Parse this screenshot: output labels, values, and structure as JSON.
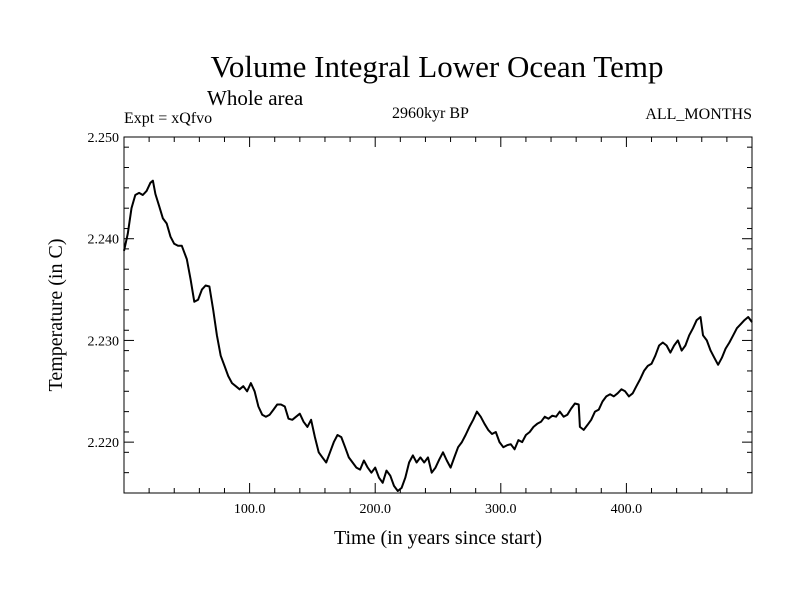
{
  "chart_data": {
    "type": "line",
    "title": "Volume Integral Lower Ocean Temp",
    "subtitle": "Whole area",
    "annotations": {
      "experiment": "Expt = xQfvo",
      "period": "2960kyr BP",
      "months": "ALL_MONTHS"
    },
    "xlabel": "Time (in years since start)",
    "ylabel": "Temperature (in C)",
    "xlim": [
      0,
      500
    ],
    "ylim": [
      2.215,
      2.25
    ],
    "x_ticks": [
      {
        "value": 100,
        "label": "100.0"
      },
      {
        "value": 200,
        "label": "200.0"
      },
      {
        "value": 300,
        "label": "300.0"
      },
      {
        "value": 400,
        "label": "400.0"
      }
    ],
    "y_ticks": [
      {
        "value": 2.22,
        "label": "2.220"
      },
      {
        "value": 2.23,
        "label": "2.230"
      },
      {
        "value": 2.24,
        "label": "2.240"
      },
      {
        "value": 2.25,
        "label": "2.250"
      }
    ],
    "series": [
      {
        "name": "Volume Integral Lower Ocean Temp",
        "color": "#000000",
        "points": [
          [
            0,
            2.2388
          ],
          [
            3,
            2.2405
          ],
          [
            6,
            2.243
          ],
          [
            9,
            2.2443
          ],
          [
            12,
            2.2445
          ],
          [
            15,
            2.2443
          ],
          [
            18,
            2.2447
          ],
          [
            21,
            2.2455
          ],
          [
            23,
            2.2457
          ],
          [
            25,
            2.2444
          ],
          [
            28,
            2.2432
          ],
          [
            31,
            2.242
          ],
          [
            34,
            2.2415
          ],
          [
            37,
            2.2402
          ],
          [
            40,
            2.2395
          ],
          [
            43,
            2.2393
          ],
          [
            46,
            2.2393
          ],
          [
            50,
            2.238
          ],
          [
            53,
            2.236
          ],
          [
            56,
            2.2338
          ],
          [
            59,
            2.234
          ],
          [
            62,
            2.235
          ],
          [
            65,
            2.2354
          ],
          [
            68,
            2.2353
          ],
          [
            71,
            2.233
          ],
          [
            74,
            2.2305
          ],
          [
            77,
            2.2285
          ],
          [
            80,
            2.2275
          ],
          [
            83,
            2.2265
          ],
          [
            86,
            2.2258
          ],
          [
            89,
            2.2255
          ],
          [
            92,
            2.2252
          ],
          [
            95,
            2.2255
          ],
          [
            98,
            2.225
          ],
          [
            101,
            2.2258
          ],
          [
            104,
            2.225
          ],
          [
            107,
            2.2235
          ],
          [
            110,
            2.2227
          ],
          [
            113,
            2.2225
          ],
          [
            116,
            2.2227
          ],
          [
            119,
            2.2232
          ],
          [
            122,
            2.2237
          ],
          [
            125,
            2.2237
          ],
          [
            128,
            2.2235
          ],
          [
            131,
            2.2223
          ],
          [
            134,
            2.2222
          ],
          [
            137,
            2.2225
          ],
          [
            140,
            2.2228
          ],
          [
            143,
            2.222
          ],
          [
            146,
            2.2215
          ],
          [
            149,
            2.2222
          ],
          [
            152,
            2.2205
          ],
          [
            155,
            2.219
          ],
          [
            158,
            2.2185
          ],
          [
            161,
            2.218
          ],
          [
            164,
            2.219
          ],
          [
            167,
            2.22
          ],
          [
            170,
            2.2207
          ],
          [
            173,
            2.2205
          ],
          [
            176,
            2.2195
          ],
          [
            179,
            2.2185
          ],
          [
            182,
            2.218
          ],
          [
            185,
            2.2175
          ],
          [
            188,
            2.2173
          ],
          [
            191,
            2.2182
          ],
          [
            194,
            2.2175
          ],
          [
            197,
            2.217
          ],
          [
            200,
            2.2175
          ],
          [
            203,
            2.2165
          ],
          [
            206,
            2.216
          ],
          [
            209,
            2.2172
          ],
          [
            212,
            2.2167
          ],
          [
            215,
            2.2157
          ],
          [
            218,
            2.2152
          ],
          [
            221,
            2.2155
          ],
          [
            224,
            2.2165
          ],
          [
            227,
            2.218
          ],
          [
            230,
            2.2187
          ],
          [
            233,
            2.218
          ],
          [
            236,
            2.2185
          ],
          [
            239,
            2.218
          ],
          [
            242,
            2.2185
          ],
          [
            245,
            2.217
          ],
          [
            248,
            2.2175
          ],
          [
            251,
            2.2183
          ],
          [
            254,
            2.219
          ],
          [
            257,
            2.2182
          ],
          [
            260,
            2.2175
          ],
          [
            263,
            2.2185
          ],
          [
            266,
            2.2195
          ],
          [
            269,
            2.22
          ],
          [
            272,
            2.2207
          ],
          [
            275,
            2.2215
          ],
          [
            278,
            2.2222
          ],
          [
            281,
            2.223
          ],
          [
            284,
            2.2225
          ],
          [
            287,
            2.2218
          ],
          [
            290,
            2.2212
          ],
          [
            293,
            2.2208
          ],
          [
            296,
            2.221
          ],
          [
            299,
            2.22
          ],
          [
            302,
            2.2195
          ],
          [
            305,
            2.2197
          ],
          [
            308,
            2.2198
          ],
          [
            311,
            2.2193
          ],
          [
            314,
            2.2202
          ],
          [
            317,
            2.22
          ],
          [
            320,
            2.2207
          ],
          [
            323,
            2.221
          ],
          [
            326,
            2.2215
          ],
          [
            329,
            2.2218
          ],
          [
            332,
            2.222
          ],
          [
            335,
            2.2225
          ],
          [
            338,
            2.2223
          ],
          [
            341,
            2.2226
          ],
          [
            344,
            2.2225
          ],
          [
            347,
            2.223
          ],
          [
            350,
            2.2225
          ],
          [
            353,
            2.2227
          ],
          [
            356,
            2.2233
          ],
          [
            359,
            2.2238
          ],
          [
            362,
            2.2237
          ],
          [
            363,
            2.2215
          ],
          [
            366,
            2.2212
          ],
          [
            369,
            2.2217
          ],
          [
            372,
            2.2222
          ],
          [
            375,
            2.223
          ],
          [
            378,
            2.2232
          ],
          [
            381,
            2.224
          ],
          [
            384,
            2.2245
          ],
          [
            387,
            2.2247
          ],
          [
            390,
            2.2245
          ],
          [
            393,
            2.2248
          ],
          [
            396,
            2.2252
          ],
          [
            399,
            2.225
          ],
          [
            402,
            2.2245
          ],
          [
            405,
            2.2248
          ],
          [
            408,
            2.2255
          ],
          [
            411,
            2.2262
          ],
          [
            414,
            2.227
          ],
          [
            417,
            2.2275
          ],
          [
            420,
            2.2277
          ],
          [
            423,
            2.2285
          ],
          [
            426,
            2.2295
          ],
          [
            429,
            2.2298
          ],
          [
            432,
            2.2295
          ],
          [
            435,
            2.2288
          ],
          [
            438,
            2.2295
          ],
          [
            441,
            2.23
          ],
          [
            444,
            2.229
          ],
          [
            447,
            2.2295
          ],
          [
            450,
            2.2305
          ],
          [
            453,
            2.2312
          ],
          [
            456,
            2.232
          ],
          [
            459,
            2.2323
          ],
          [
            461,
            2.2305
          ],
          [
            464,
            2.23
          ],
          [
            467,
            2.229
          ],
          [
            470,
            2.2283
          ],
          [
            473,
            2.2276
          ],
          [
            476,
            2.2283
          ],
          [
            479,
            2.2292
          ],
          [
            482,
            2.2298
          ],
          [
            485,
            2.2305
          ],
          [
            488,
            2.2312
          ],
          [
            491,
            2.2316
          ],
          [
            494,
            2.232
          ],
          [
            497,
            2.2323
          ],
          [
            500,
            2.2318
          ]
        ]
      }
    ]
  }
}
